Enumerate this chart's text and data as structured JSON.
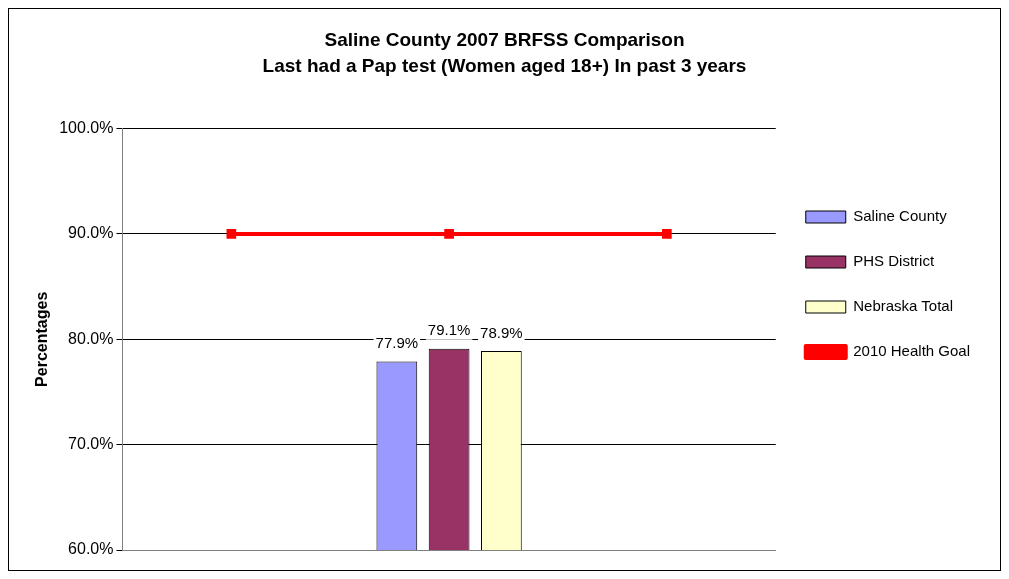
{
  "chart_data": {
    "type": "bar",
    "title": "Saline County 2007 BRFSS Comparison",
    "subtitle": "Last had a Pap test (Women aged 18+) In past 3 years",
    "ylabel": "Percentages",
    "categories": [
      null,
      null,
      null
    ],
    "series": [
      {
        "name": "Saline County",
        "color": "#9999ff",
        "values": [
          null,
          77.9,
          null
        ],
        "value_labels": [
          null,
          "77.9%",
          null
        ]
      },
      {
        "name": "PHS District",
        "color": "#993366",
        "values": [
          null,
          79.1,
          null
        ],
        "value_labels": [
          null,
          "79.1%",
          null
        ]
      },
      {
        "name": "Nebraska Total",
        "color": "#ffffcc",
        "values": [
          null,
          78.9,
          null
        ],
        "value_labels": [
          null,
          "78.9%",
          null
        ]
      },
      {
        "name": "2010 Health Goal",
        "type": "line",
        "color": "#ff0000",
        "values": [
          90,
          90,
          90
        ]
      }
    ],
    "ylim": [
      60,
      100
    ],
    "yticks": [
      {
        "value": 60,
        "label": "60.0%"
      },
      {
        "value": 70,
        "label": "70.0%"
      },
      {
        "value": 80,
        "label": "80.0%"
      },
      {
        "value": 90,
        "label": "90.0%"
      },
      {
        "value": 100,
        "label": "100.0%"
      }
    ],
    "grid": "y",
    "legend": "right",
    "marker": "square",
    "line_style": "solid",
    "tick_labels": "y"
  }
}
